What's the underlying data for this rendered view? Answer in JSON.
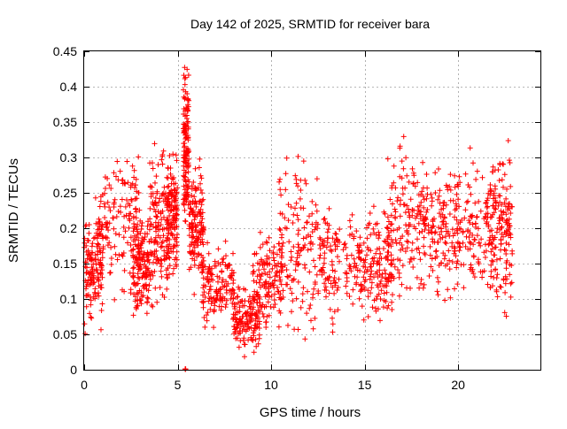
{
  "chart_data": {
    "type": "scatter",
    "title": "Day 142 of 2025, SRMTID for receiver bara",
    "xlabel": "GPS time / hours",
    "ylabel": "SRMTID / TECUs",
    "xlim": [
      0,
      24.4
    ],
    "ylim": [
      0,
      0.45
    ],
    "x_ticks": [
      0,
      5,
      10,
      15,
      20
    ],
    "x_tick_labels": [
      "0",
      "5",
      "10",
      "15",
      "20"
    ],
    "y_ticks": [
      0,
      0.05,
      0.1,
      0.15,
      0.2,
      0.25,
      0.3,
      0.35,
      0.4,
      0.45
    ],
    "y_tick_labels": [
      "0",
      "0.05",
      "0.1",
      "0.15",
      "0.2",
      "0.25",
      "0.3",
      "0.35",
      "0.4",
      "0.45"
    ],
    "grid": true,
    "marker": "plus",
    "series_color": "#ff0000",
    "point_count": 2400,
    "clusters": [
      {
        "x": [
          0.0,
          1.0
        ],
        "y": [
          0.05,
          0.25
        ]
      },
      {
        "x": [
          0.8,
          3.0
        ],
        "y": [
          0.09,
          0.33
        ]
      },
      {
        "x": [
          2.6,
          3.5
        ],
        "y": [
          0.06,
          0.23
        ]
      },
      {
        "x": [
          3.5,
          4.5
        ],
        "y": [
          0.07,
          0.34
        ]
      },
      {
        "x": [
          4.4,
          5.0
        ],
        "y": [
          0.12,
          0.31
        ]
      },
      {
        "x": [
          5.3,
          5.6
        ],
        "y": [
          0.2,
          0.45
        ]
      },
      {
        "x": [
          5.6,
          6.4
        ],
        "y": [
          0.1,
          0.31
        ]
      },
      {
        "x": [
          6.3,
          8.0
        ],
        "y": [
          0.05,
          0.18
        ]
      },
      {
        "x": [
          8.0,
          9.4
        ],
        "y": [
          0.02,
          0.12
        ]
      },
      {
        "x": [
          9.0,
          10.6
        ],
        "y": [
          0.05,
          0.2
        ]
      },
      {
        "x": [
          10.4,
          12.5
        ],
        "y": [
          0.03,
          0.32
        ]
      },
      {
        "x": [
          12.5,
          14.8
        ],
        "y": [
          0.06,
          0.25
        ]
      },
      {
        "x": [
          14.8,
          16.5
        ],
        "y": [
          0.06,
          0.23
        ]
      },
      {
        "x": [
          16.2,
          18.2
        ],
        "y": [
          0.07,
          0.35
        ]
      },
      {
        "x": [
          18.0,
          20.0
        ],
        "y": [
          0.09,
          0.31
        ]
      },
      {
        "x": [
          19.8,
          22.0
        ],
        "y": [
          0.09,
          0.31
        ]
      },
      {
        "x": [
          21.7,
          22.9
        ],
        "y": [
          0.06,
          0.33
        ]
      }
    ],
    "zero_markers": [
      {
        "x": 5.4,
        "y": 0.0
      }
    ]
  }
}
